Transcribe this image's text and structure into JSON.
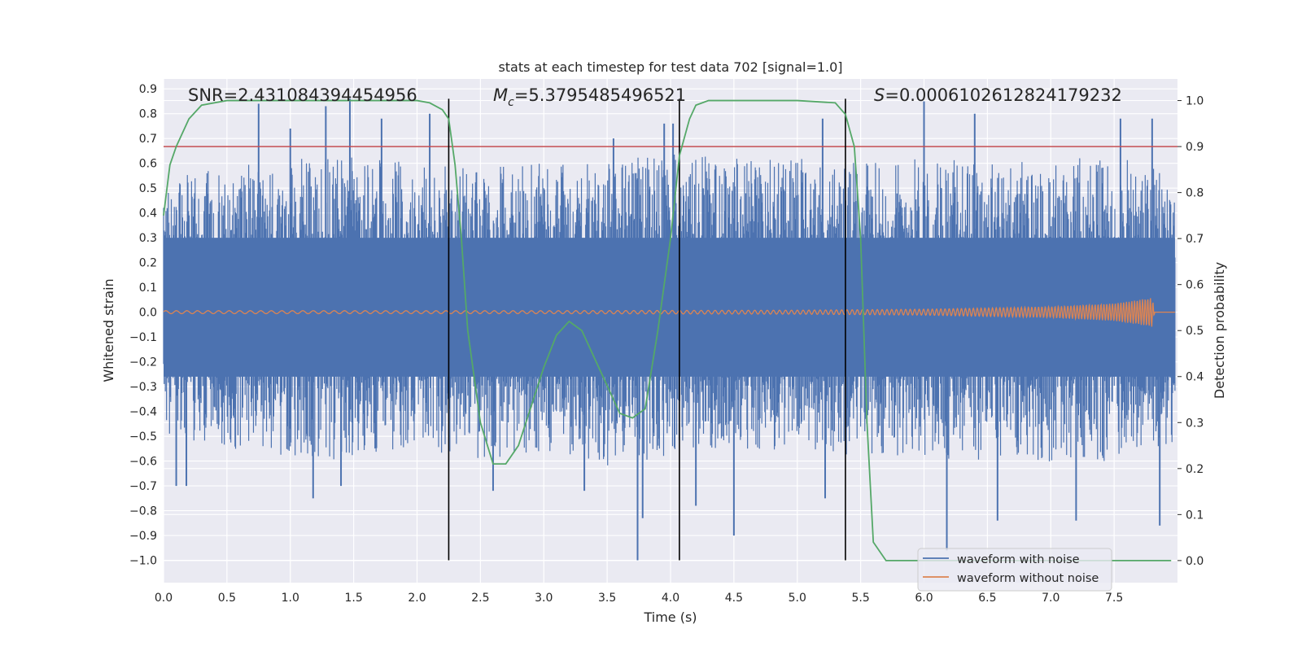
{
  "chart_data": {
    "type": "line",
    "title": "stats at each timestep for test data 702 [signal=1.0]",
    "xlabel": "Time (s)",
    "ylabel": "Whitened strain",
    "y2label": "Detection probability",
    "xlim": [
      0.0,
      8.0
    ],
    "ylim": [
      -1.09,
      0.94
    ],
    "y2lim": [
      -0.048,
      1.047
    ],
    "x_ticks": [
      "0.0",
      "0.5",
      "1.0",
      "1.5",
      "2.0",
      "2.5",
      "3.0",
      "3.5",
      "4.0",
      "4.5",
      "5.0",
      "5.5",
      "6.0",
      "6.5",
      "7.0",
      "7.5"
    ],
    "y_ticks": [
      "0.9",
      "0.8",
      "0.7",
      "0.6",
      "0.5",
      "0.4",
      "0.3",
      "0.2",
      "0.1",
      "0.0",
      "−0.1",
      "−0.2",
      "−0.3",
      "−0.4",
      "−0.5",
      "−0.6",
      "−0.7",
      "−0.8",
      "−0.9",
      "−1.0"
    ],
    "y2_ticks": [
      "1.0",
      "0.9",
      "0.8",
      "0.7",
      "0.6",
      "0.5",
      "0.4",
      "0.3",
      "0.2",
      "0.1",
      "0.0"
    ],
    "threshold": {
      "axis": "right",
      "value": 0.9,
      "color": "#c44e52"
    },
    "vlines": [
      2.25,
      4.07,
      5.38
    ],
    "vline_span": [
      -1.0,
      0.86
    ],
    "stats": {
      "snr": "SNR=2.431084394454956",
      "mc_symbol": "M",
      "mc_sub": "c",
      "mc_value": "=5.3795485496521",
      "s_symbol": "S",
      "s_value": "=0.0006102612824179232"
    },
    "series": [
      {
        "name": "waveform with noise",
        "color": "#4c72b0",
        "axis": "left",
        "envelope_upper": [
          [
            0.0,
            0.55
          ],
          [
            0.5,
            0.6
          ],
          [
            1.0,
            0.62
          ],
          [
            1.5,
            0.63
          ],
          [
            2.0,
            0.6
          ],
          [
            2.5,
            0.58
          ],
          [
            3.0,
            0.6
          ],
          [
            3.5,
            0.62
          ],
          [
            4.0,
            0.64
          ],
          [
            4.5,
            0.62
          ],
          [
            5.0,
            0.62
          ],
          [
            5.5,
            0.6
          ],
          [
            6.0,
            0.64
          ],
          [
            6.5,
            0.6
          ],
          [
            7.0,
            0.62
          ],
          [
            7.5,
            0.63
          ],
          [
            8.0,
            0.55
          ]
        ],
        "envelope_lower": [
          [
            0.0,
            -0.5
          ],
          [
            0.5,
            -0.55
          ],
          [
            1.0,
            -0.58
          ],
          [
            1.5,
            -0.6
          ],
          [
            2.0,
            -0.55
          ],
          [
            2.5,
            -0.6
          ],
          [
            3.0,
            -0.58
          ],
          [
            3.5,
            -0.62
          ],
          [
            4.0,
            -0.58
          ],
          [
            4.5,
            -0.55
          ],
          [
            5.0,
            -0.56
          ],
          [
            5.5,
            -0.58
          ],
          [
            6.0,
            -0.6
          ],
          [
            6.5,
            -0.6
          ],
          [
            7.0,
            -0.62
          ],
          [
            7.5,
            -0.6
          ],
          [
            8.0,
            -0.55
          ]
        ],
        "spikes": [
          [
            0.75,
            0.84
          ],
          [
            1.0,
            0.74
          ],
          [
            1.28,
            0.83
          ],
          [
            1.47,
            0.86
          ],
          [
            1.72,
            0.78
          ],
          [
            2.1,
            0.8
          ],
          [
            3.55,
            0.7
          ],
          [
            3.95,
            0.76
          ],
          [
            4.02,
            0.76
          ],
          [
            5.2,
            0.78
          ],
          [
            6.0,
            0.85
          ],
          [
            6.4,
            0.8
          ],
          [
            7.55,
            0.78
          ],
          [
            7.8,
            0.78
          ],
          [
            0.1,
            -0.7
          ],
          [
            0.18,
            -0.7
          ],
          [
            1.18,
            -0.75
          ],
          [
            1.4,
            -0.7
          ],
          [
            2.6,
            -0.72
          ],
          [
            3.32,
            -0.72
          ],
          [
            3.74,
            -1.0
          ],
          [
            3.78,
            -0.83
          ],
          [
            4.2,
            -0.78
          ],
          [
            4.5,
            -0.9
          ],
          [
            5.22,
            -0.75
          ],
          [
            6.18,
            -0.96
          ],
          [
            6.58,
            -0.84
          ],
          [
            7.2,
            -0.84
          ],
          [
            7.86,
            -0.86
          ]
        ]
      },
      {
        "name": "waveform without noise",
        "color": "#dd8452",
        "axis": "left",
        "amplitude": [
          [
            0.0,
            0.006
          ],
          [
            3.0,
            0.006
          ],
          [
            5.0,
            0.008
          ],
          [
            6.0,
            0.012
          ],
          [
            7.0,
            0.022
          ],
          [
            7.5,
            0.035
          ],
          [
            7.7,
            0.05
          ],
          [
            7.8,
            0.06
          ],
          [
            7.82,
            0.0
          ],
          [
            8.0,
            0.0
          ]
        ]
      },
      {
        "name": "Detection probability",
        "color": "#55a868",
        "axis": "right",
        "x": [
          0.0,
          0.05,
          0.1,
          0.2,
          0.3,
          0.5,
          1.0,
          1.5,
          2.0,
          2.1,
          2.2,
          2.25,
          2.3,
          2.35,
          2.4,
          2.5,
          2.6,
          2.7,
          2.8,
          3.0,
          3.1,
          3.2,
          3.3,
          3.5,
          3.6,
          3.7,
          3.8,
          3.9,
          4.0,
          4.07,
          4.15,
          4.2,
          4.3,
          4.5,
          5.0,
          5.3,
          5.38,
          5.45,
          5.5,
          5.55,
          5.6,
          5.7,
          6.0,
          7.0,
          7.95
        ],
        "y": [
          0.75,
          0.86,
          0.9,
          0.96,
          0.99,
          1.0,
          1.0,
          1.0,
          1.0,
          0.995,
          0.98,
          0.96,
          0.86,
          0.7,
          0.5,
          0.3,
          0.21,
          0.21,
          0.25,
          0.42,
          0.49,
          0.52,
          0.5,
          0.38,
          0.32,
          0.31,
          0.33,
          0.5,
          0.7,
          0.88,
          0.96,
          0.99,
          1.0,
          1.0,
          1.0,
          0.995,
          0.97,
          0.9,
          0.7,
          0.3,
          0.04,
          0.0,
          0.0,
          0.0,
          0.0
        ]
      }
    ],
    "legend": {
      "position": "lower-right",
      "entries": [
        {
          "label": "waveform with noise",
          "color": "#4c72b0"
        },
        {
          "label": "waveform without noise",
          "color": "#dd8452"
        }
      ]
    },
    "grid": true
  }
}
